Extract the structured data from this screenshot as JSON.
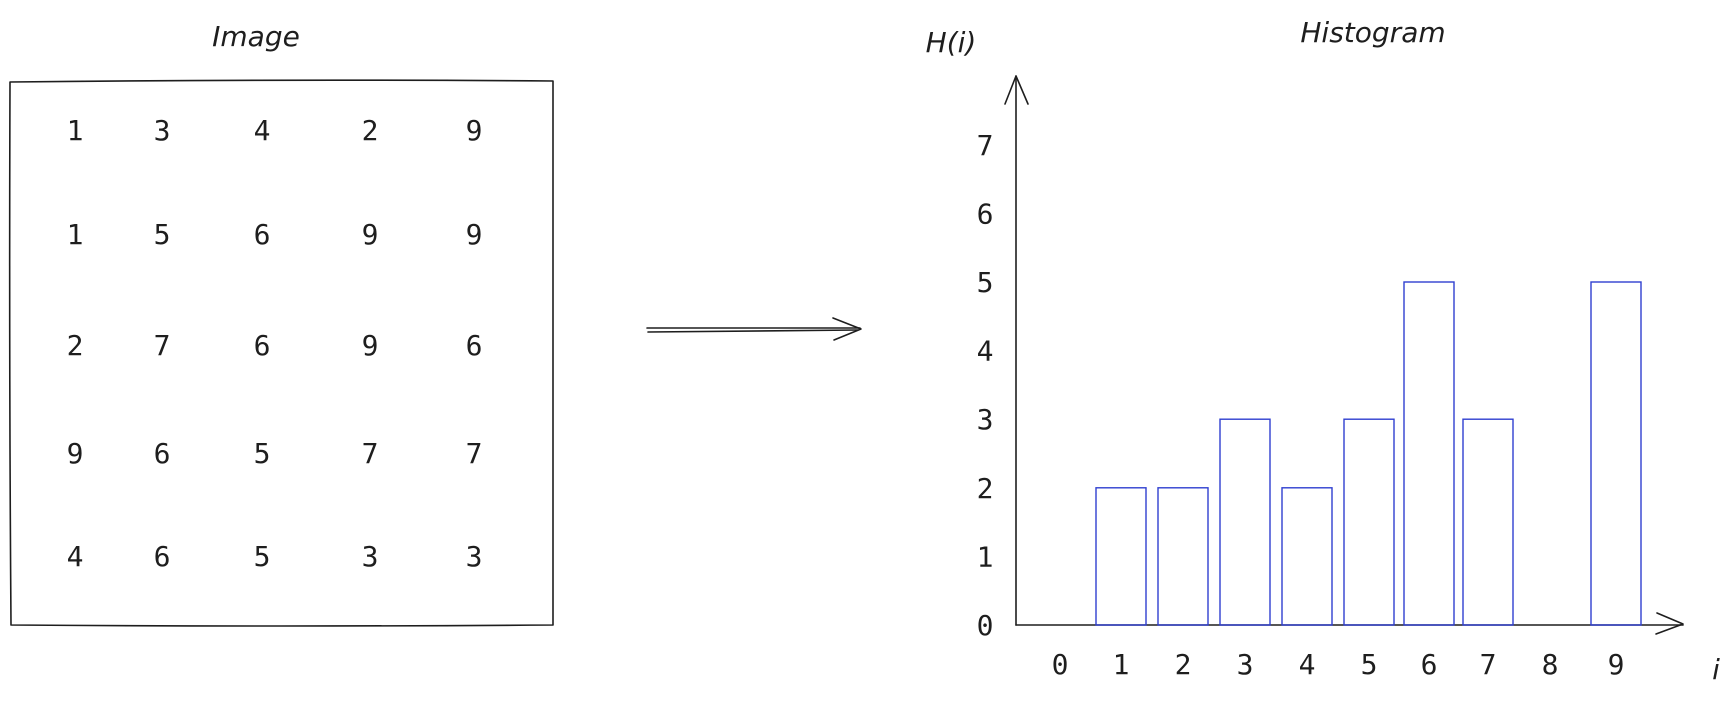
{
  "image_panel": {
    "title": "Image",
    "grid": [
      [
        "1",
        "3",
        "4",
        "2",
        "9"
      ],
      [
        "1",
        "5",
        "6",
        "9",
        "9"
      ],
      [
        "2",
        "7",
        "6",
        "9",
        "6"
      ],
      [
        "9",
        "6",
        "5",
        "7",
        "7"
      ],
      [
        "4",
        "6",
        "5",
        "3",
        "3"
      ]
    ]
  },
  "histogram_panel": {
    "title": "Histogram",
    "y_axis_label": "H(i)",
    "x_axis_label": "i"
  },
  "chart_data": {
    "type": "bar",
    "title": "Histogram",
    "xlabel": "i",
    "ylabel": "H(i)",
    "categories": [
      "0",
      "1",
      "2",
      "3",
      "4",
      "5",
      "6",
      "7",
      "8",
      "9"
    ],
    "values": [
      0,
      2,
      2,
      3,
      2,
      3,
      5,
      3,
      0,
      5
    ],
    "y_ticks": [
      "0",
      "1",
      "2",
      "3",
      "4",
      "5",
      "6",
      "7"
    ],
    "ylim": [
      0,
      7
    ],
    "grid": false,
    "bar_color": "#2f3fd0"
  },
  "colors": {
    "ink": "#1e1e1e",
    "bar_stroke": "#2f3fd0",
    "background": "#ffffff"
  }
}
